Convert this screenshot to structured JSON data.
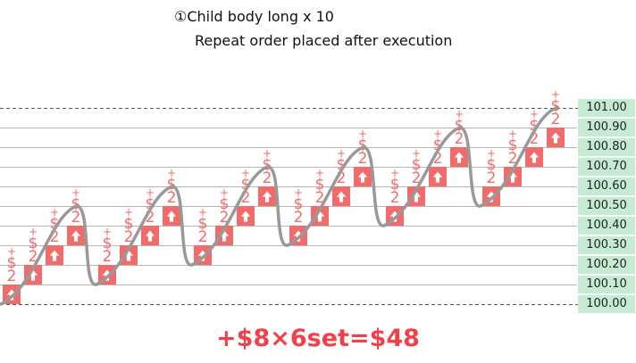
{
  "header": {
    "title_line1": "①Child body long x 10",
    "title_line2": "Repeat order placed after execution"
  },
  "summary": "+$8×6set=$48",
  "colors": {
    "candle": "#f26b6b",
    "candle_light": "#fbd3d3",
    "profit_text": "#f26b6b",
    "price_line": "#999999",
    "axis_label_bg": "#c6ebd3",
    "summary_text": "#f0414a"
  },
  "chart_data": {
    "type": "bar",
    "ylim": [
      100.0,
      101.0
    ],
    "y_ticks": [
      "100.00",
      "100.10",
      "100.20",
      "100.30",
      "100.40",
      "100.50",
      "100.60",
      "100.70",
      "100.80",
      "100.90",
      "101.00"
    ],
    "grid": true,
    "bar_annotation": [
      "+",
      "$",
      "2"
    ],
    "sets": [
      {
        "buys": [
          100.0,
          100.1,
          100.2,
          100.3
        ],
        "sell_offset": 0.1
      },
      {
        "buys": [
          100.1,
          100.2,
          100.3,
          100.4
        ],
        "sell_offset": 0.1
      },
      {
        "buys": [
          100.2,
          100.3,
          100.4,
          100.5
        ],
        "sell_offset": 0.1
      },
      {
        "buys": [
          100.3,
          100.4,
          100.5,
          100.6
        ],
        "sell_offset": 0.1
      },
      {
        "buys": [
          100.4,
          100.5,
          100.6,
          100.7
        ],
        "sell_offset": 0.1
      },
      {
        "buys": [
          100.5,
          100.6,
          100.7,
          100.8
        ],
        "sell_offset": 0.1
      }
    ],
    "price_path": {
      "troughs": [
        100.0,
        100.1,
        100.2,
        100.3,
        100.4,
        100.5
      ],
      "peaks": [
        100.5,
        100.6,
        100.7,
        100.8,
        100.9,
        101.0
      ]
    }
  }
}
